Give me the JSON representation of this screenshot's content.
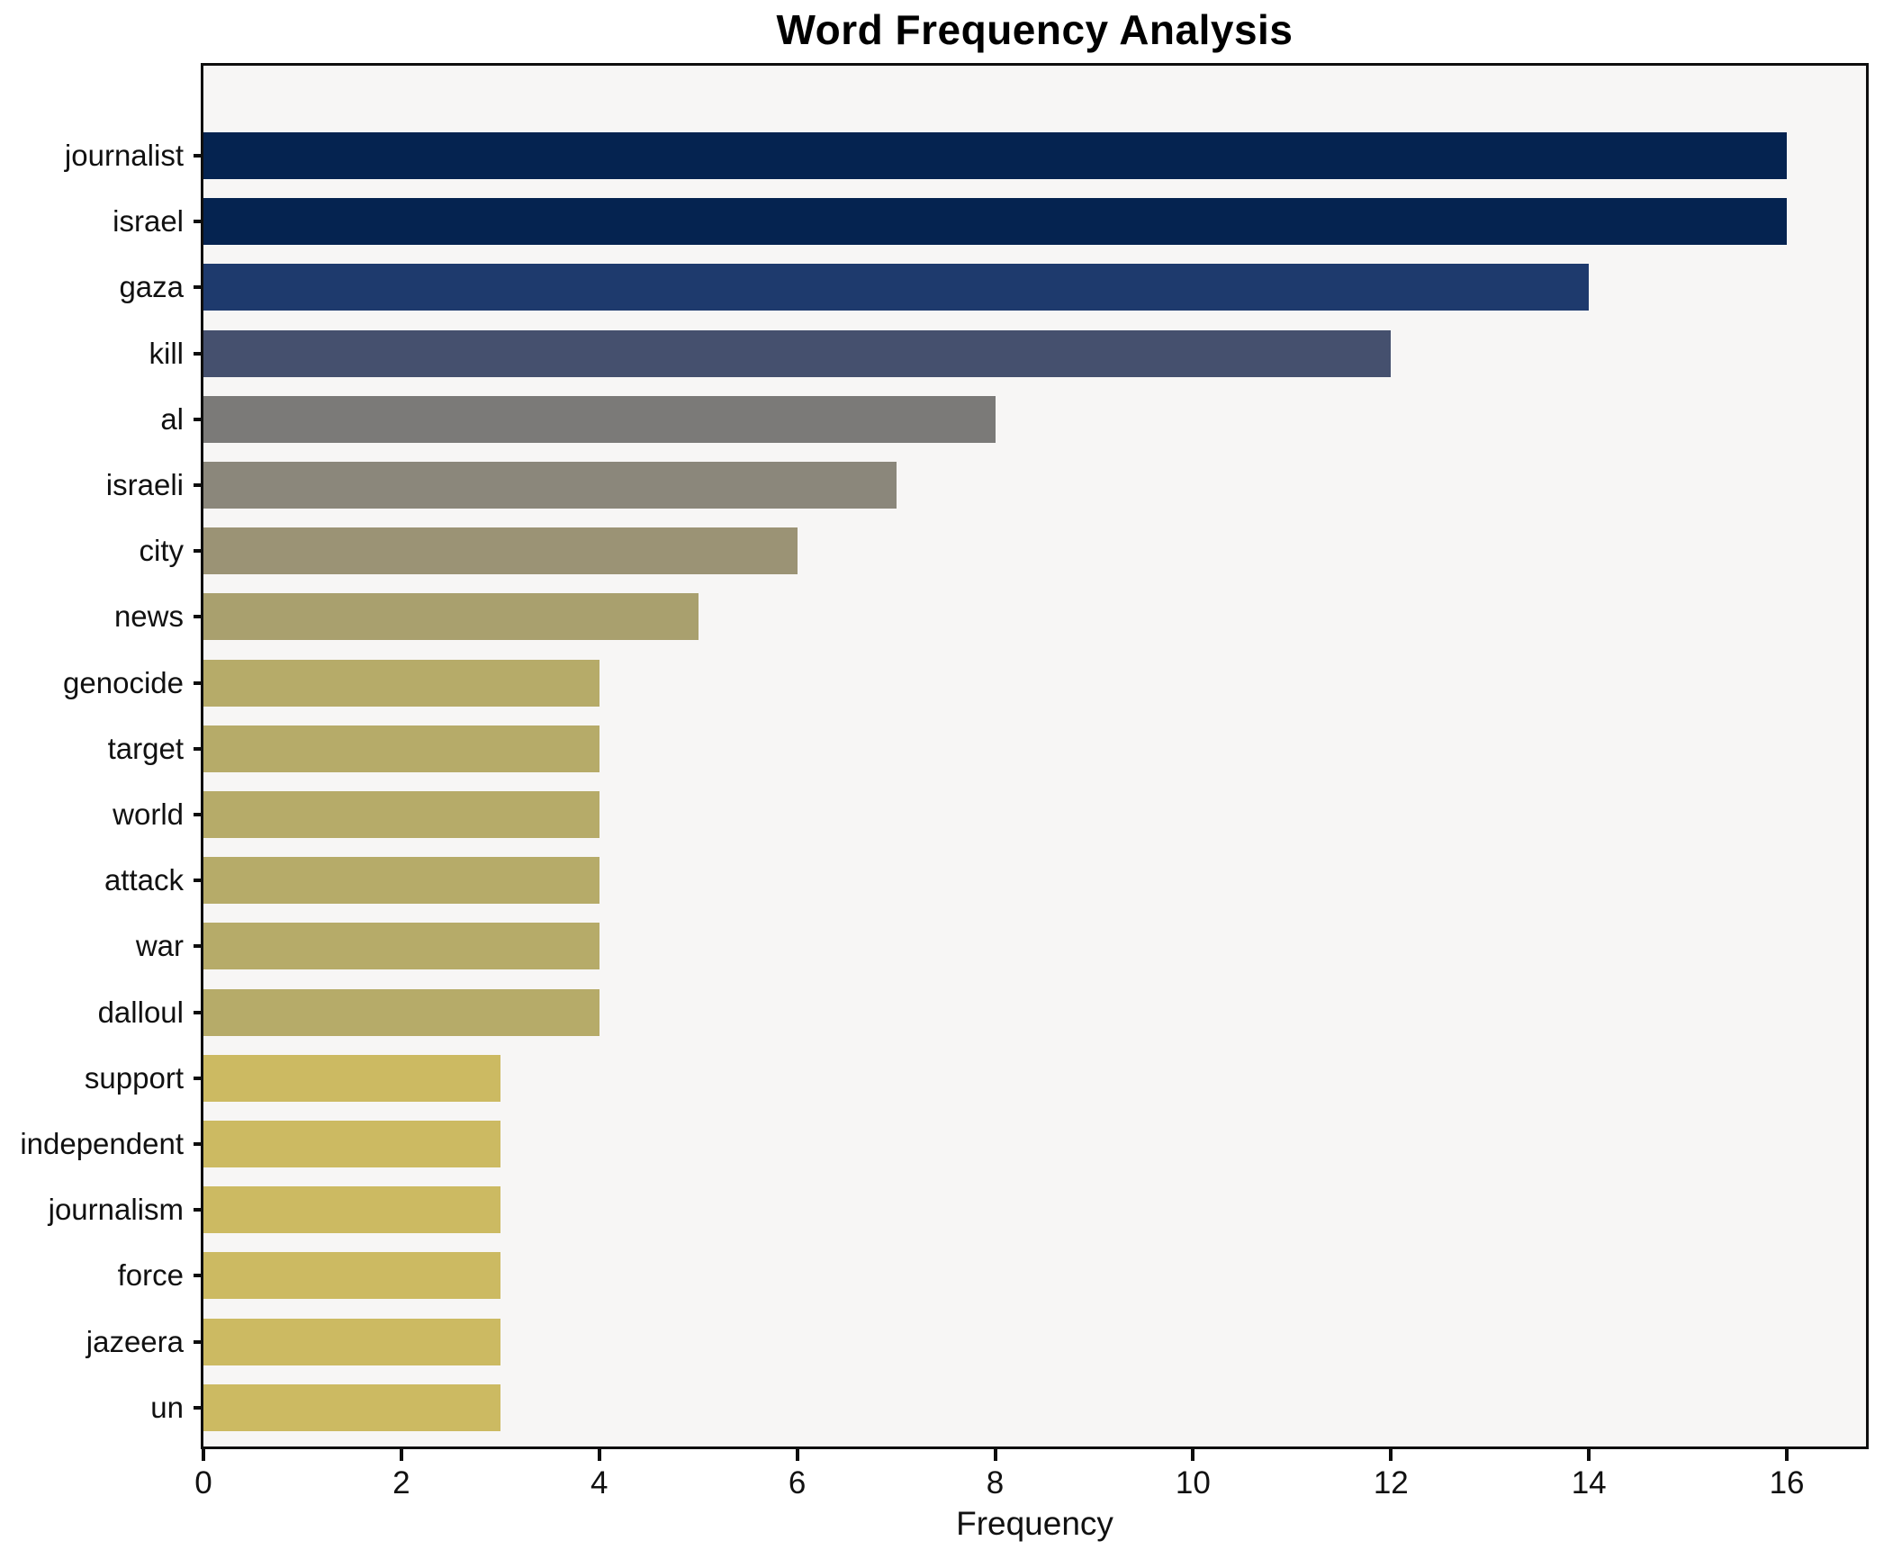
{
  "title": "Word Frequency Analysis",
  "chart_data": {
    "type": "bar",
    "orientation": "horizontal",
    "title": "Word Frequency Analysis",
    "xlabel": "Frequency",
    "ylabel": "",
    "categories": [
      "journalist",
      "israel",
      "gaza",
      "kill",
      "al",
      "israeli",
      "city",
      "news",
      "genocide",
      "target",
      "world",
      "attack",
      "war",
      "dalloul",
      "support",
      "independent",
      "journalism",
      "force",
      "jazeera",
      "un"
    ],
    "values": [
      16,
      16,
      14,
      12,
      8,
      7,
      6,
      5,
      4,
      4,
      4,
      4,
      4,
      4,
      3,
      3,
      3,
      3,
      3,
      3
    ],
    "bar_colors": [
      "#052350",
      "#052350",
      "#1e3a6d",
      "#45506e",
      "#7b7a78",
      "#8b877b",
      "#9b9375",
      "#a9a06e",
      "#b6ab69",
      "#b6ab69",
      "#b6ab69",
      "#b6ab69",
      "#b6ab69",
      "#b6ab69",
      "#ccba62",
      "#ccba62",
      "#ccba62",
      "#ccba62",
      "#ccba62",
      "#ccba62"
    ],
    "xlim": [
      0,
      16.8
    ],
    "xticks": [
      0,
      2,
      4,
      6,
      8,
      10,
      12,
      14,
      16
    ],
    "grid": false,
    "legend": null,
    "plot_background": "#f7f6f5",
    "figure_background": "#ffffff",
    "spine_color": "#0e0e0e"
  }
}
